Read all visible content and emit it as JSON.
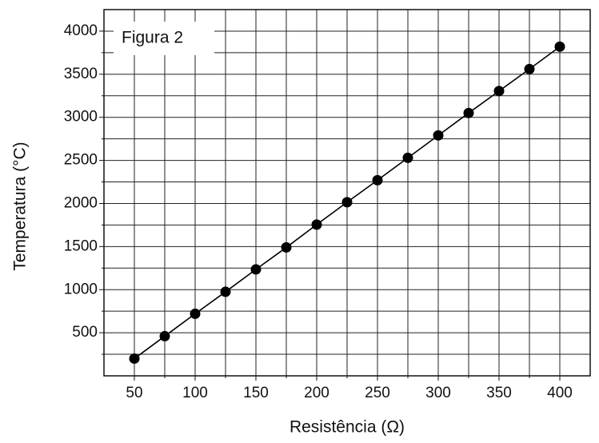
{
  "chart_data": {
    "type": "line",
    "annotation": "Figura 2",
    "x_label": "Resistência (Ω)",
    "y_label": "Temperatura (°C)",
    "x": [
      50,
      75,
      100,
      125,
      150,
      175,
      200,
      225,
      250,
      275,
      300,
      325,
      350,
      375,
      400
    ],
    "series": [
      {
        "color": "#000000",
        "values": [
          200,
          460,
          720,
          975,
          1235,
          1490,
          1755,
          2015,
          2270,
          2530,
          2790,
          3050,
          3305,
          3560,
          3820
        ]
      }
    ],
    "xlim": [
      25,
      425
    ],
    "ylim": [
      0,
      4250
    ],
    "xticks": [
      50,
      100,
      150,
      200,
      250,
      300,
      350,
      400
    ],
    "yticks": [
      500,
      1000,
      1500,
      2000,
      2500,
      3000,
      3500,
      4000
    ],
    "x_minor_ticks": [
      75,
      125,
      175,
      225,
      275,
      325,
      375
    ],
    "y_minor_ticks": [
      250,
      750,
      1250,
      1750,
      2250,
      2750,
      3250,
      3750
    ],
    "grid": true
  }
}
